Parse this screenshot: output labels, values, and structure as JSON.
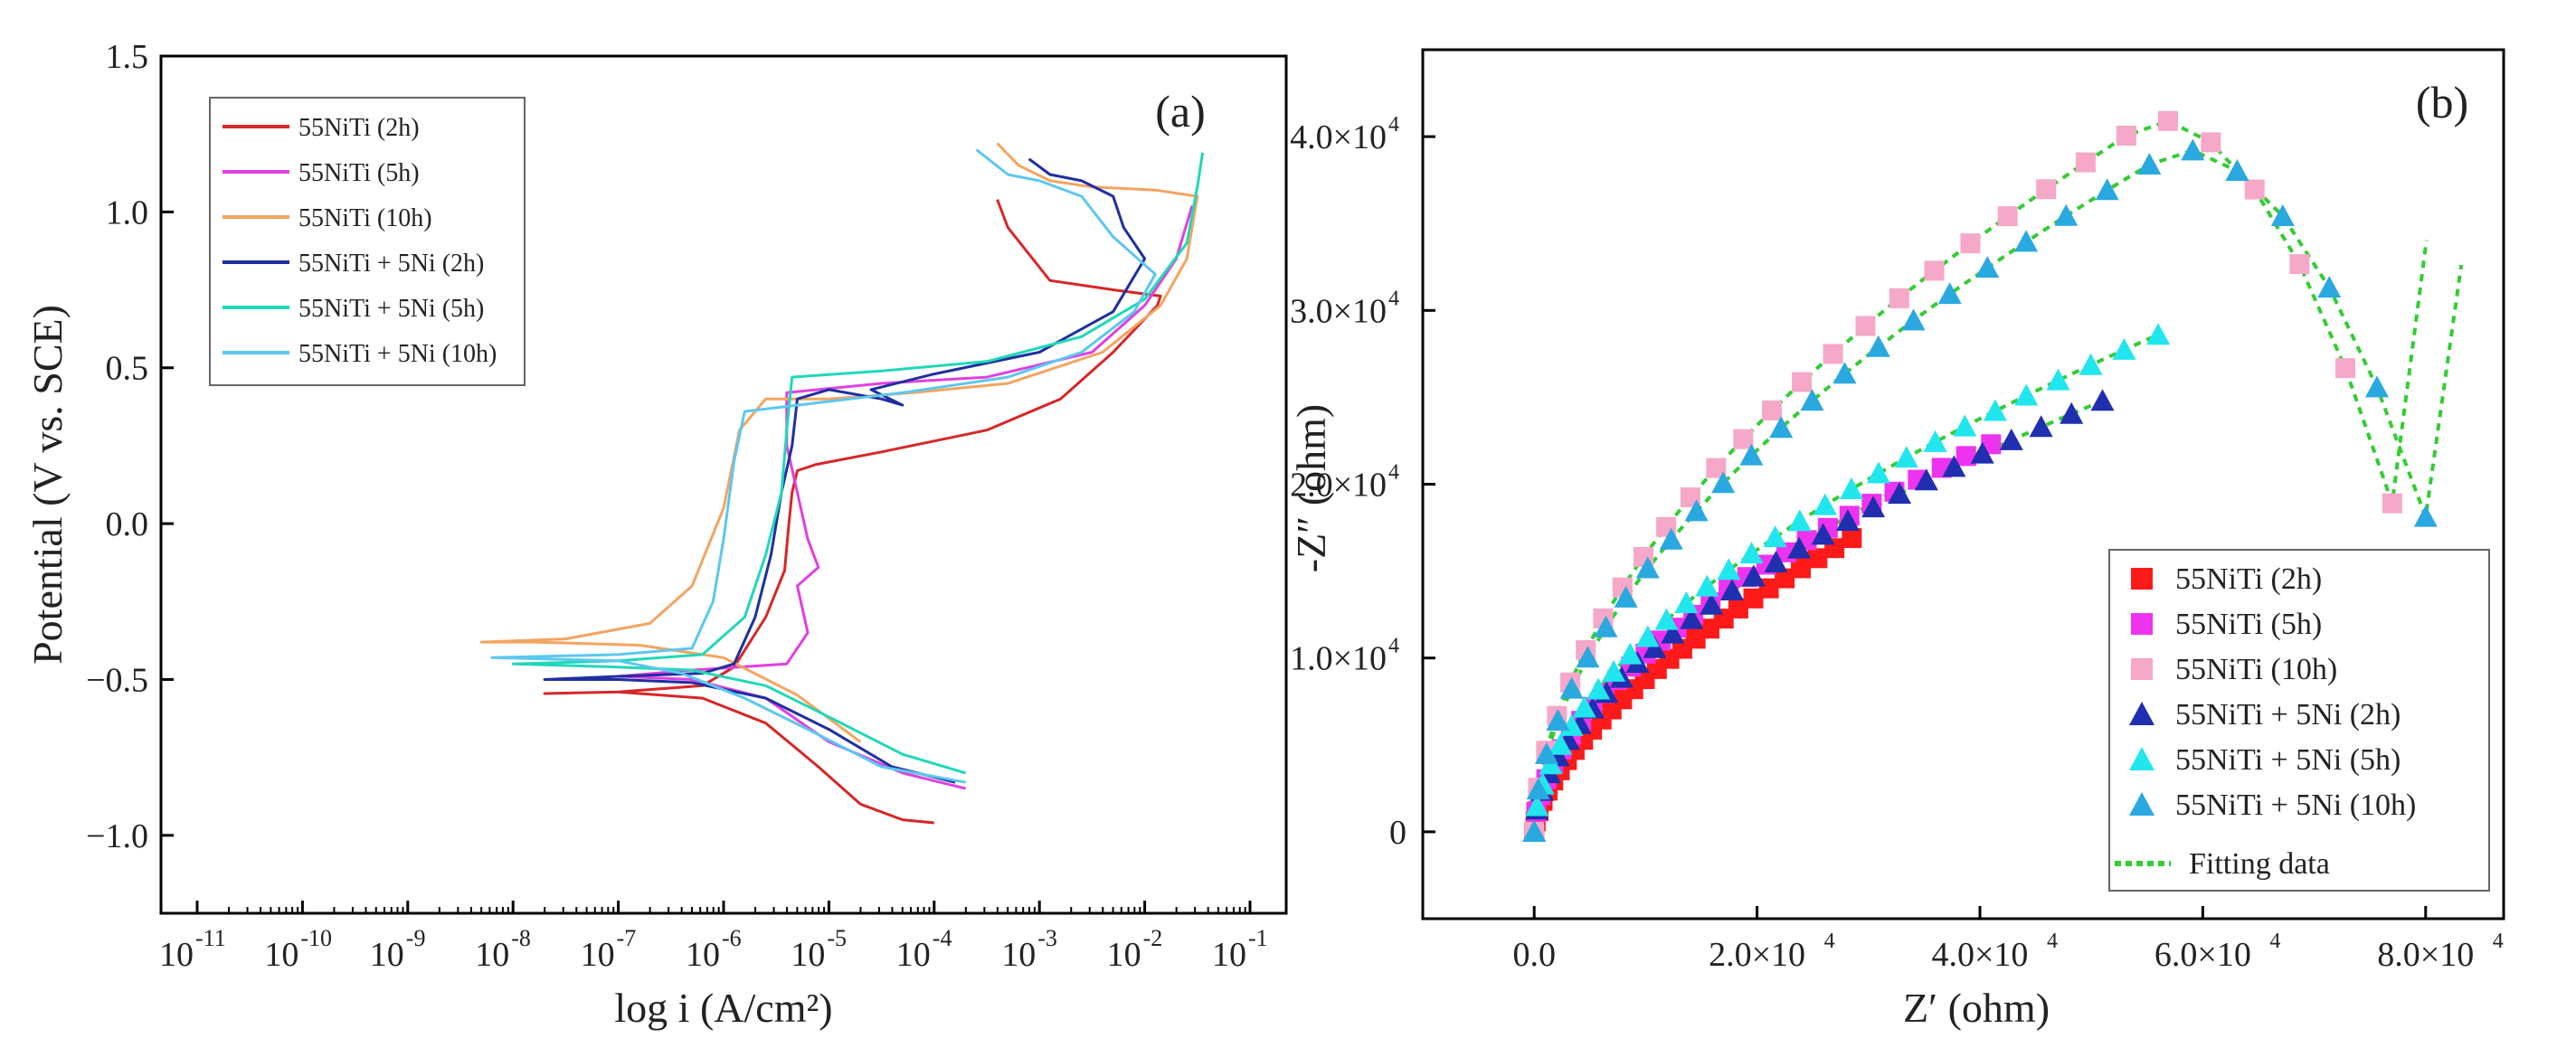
{
  "chart_data": [
    {
      "panel": "(a)",
      "type": "line",
      "xlabel": "log i (A/cm²)",
      "ylabel": "Potential (V vs. SCE)",
      "xscale": "log",
      "xlim": [
        -11,
        -1
      ],
      "ylim": [
        -1.25,
        1.5
      ],
      "xticks": [
        -11,
        -10,
        -9,
        -8,
        -7,
        -6,
        -5,
        -4,
        -3,
        -2,
        -1
      ],
      "xtick_labels": [
        "10",
        "10",
        "10",
        "10",
        "10",
        "10",
        "10",
        "10",
        "10",
        "10",
        "10"
      ],
      "xtick_exponents": [
        "-11",
        "-10",
        "-9",
        "-8",
        "-7",
        "-6",
        "-5",
        "-4",
        "-3",
        "-2",
        "-1"
      ],
      "yticks": [
        -1.0,
        -0.5,
        0.0,
        0.5,
        1.0,
        1.5
      ],
      "ytick_labels": [
        "−1.0",
        "−0.5",
        "0.0",
        "0.5",
        "1.0",
        "1.5"
      ],
      "legend": "top-left",
      "series": [
        {
          "name": "55NiTi (2h)",
          "color": "#d62728",
          "points": [
            [
              -4.0,
              -0.96
            ],
            [
              -4.3,
              -0.95
            ],
            [
              -4.7,
              -0.9
            ],
            [
              -5.1,
              -0.78
            ],
            [
              -5.6,
              -0.64
            ],
            [
              -6.2,
              -0.56
            ],
            [
              -7,
              -0.54
            ],
            [
              -7.7,
              -0.545
            ],
            [
              -7,
              -0.54
            ],
            [
              -6.2,
              -0.52
            ],
            [
              -5.9,
              -0.46
            ],
            [
              -5.6,
              -0.3
            ],
            [
              -5.42,
              -0.15
            ],
            [
              -5.38,
              0.0
            ],
            [
              -5.35,
              0.1
            ],
            [
              -5.3,
              0.17
            ],
            [
              -5.12,
              0.19
            ],
            [
              -4.5,
              0.23
            ],
            [
              -3.5,
              0.3
            ],
            [
              -2.8,
              0.4
            ],
            [
              -2.3,
              0.55
            ],
            [
              -1.88,
              0.7
            ],
            [
              -1.85,
              0.73
            ],
            [
              -2.3,
              0.75
            ],
            [
              -2.9,
              0.78
            ],
            [
              -3.3,
              0.95
            ],
            [
              -3.4,
              1.04
            ]
          ]
        },
        {
          "name": "55NiTi (5h)",
          "color": "#e040e0",
          "points": [
            [
              -3.7,
              -0.85
            ],
            [
              -4.3,
              -0.8
            ],
            [
              -5.0,
              -0.7
            ],
            [
              -5.6,
              -0.56
            ],
            [
              -6.3,
              -0.5
            ],
            [
              -7,
              -0.49
            ],
            [
              -6.3,
              -0.47
            ],
            [
              -5.4,
              -0.45
            ],
            [
              -5.2,
              -0.35
            ],
            [
              -5.3,
              -0.2
            ],
            [
              -5.1,
              -0.14
            ],
            [
              -5.2,
              -0.05
            ],
            [
              -5.3,
              0.1
            ],
            [
              -5.4,
              0.25
            ],
            [
              -5.4,
              0.42
            ],
            [
              -4.5,
              0.45
            ],
            [
              -3.5,
              0.47
            ],
            [
              -2.5,
              0.55
            ],
            [
              -2.0,
              0.7
            ],
            [
              -1.7,
              0.85
            ],
            [
              -1.55,
              1.02
            ]
          ]
        },
        {
          "name": "55NiTi (10h)",
          "color": "#f4a460",
          "points": [
            [
              -4.7,
              -0.7
            ],
            [
              -5.3,
              -0.55
            ],
            [
              -6,
              -0.43
            ],
            [
              -6.8,
              -0.39
            ],
            [
              -7.8,
              -0.38
            ],
            [
              -8.3,
              -0.38
            ],
            [
              -7.5,
              -0.37
            ],
            [
              -6.7,
              -0.32
            ],
            [
              -6.3,
              -0.2
            ],
            [
              -6.0,
              0.05
            ],
            [
              -5.85,
              0.3
            ],
            [
              -5.6,
              0.4
            ],
            [
              -5.0,
              0.4
            ],
            [
              -4.2,
              0.42
            ],
            [
              -3.3,
              0.45
            ],
            [
              -2.4,
              0.55
            ],
            [
              -1.85,
              0.7
            ],
            [
              -1.6,
              0.85
            ],
            [
              -1.5,
              1.05
            ],
            [
              -1.9,
              1.07
            ],
            [
              -2.5,
              1.08
            ],
            [
              -2.9,
              1.1
            ],
            [
              -3.2,
              1.15
            ],
            [
              -3.4,
              1.22
            ]
          ]
        },
        {
          "name": "55NiTi + 5Ni (2h)",
          "color": "#1f2fa0",
          "points": [
            [
              -3.8,
              -0.83
            ],
            [
              -4.4,
              -0.78
            ],
            [
              -5.0,
              -0.66
            ],
            [
              -5.6,
              -0.56
            ],
            [
              -6.3,
              -0.51
            ],
            [
              -7,
              -0.5
            ],
            [
              -7.7,
              -0.5
            ],
            [
              -7,
              -0.49
            ],
            [
              -6.2,
              -0.48
            ],
            [
              -5.9,
              -0.45
            ],
            [
              -5.7,
              -0.3
            ],
            [
              -5.55,
              -0.1
            ],
            [
              -5.45,
              0.1
            ],
            [
              -5.35,
              0.25
            ],
            [
              -5.3,
              0.4
            ],
            [
              -5.0,
              0.43
            ],
            [
              -4.5,
              0.4
            ],
            [
              -4.3,
              0.38
            ],
            [
              -4.6,
              0.43
            ],
            [
              -4.0,
              0.48
            ],
            [
              -3.0,
              0.55
            ],
            [
              -2.3,
              0.68
            ],
            [
              -2.0,
              0.85
            ],
            [
              -2.2,
              0.95
            ],
            [
              -2.3,
              1.05
            ],
            [
              -2.6,
              1.1
            ],
            [
              -2.9,
              1.12
            ],
            [
              -3.1,
              1.17
            ]
          ]
        },
        {
          "name": "55NiTi + 5Ni (5h)",
          "color": "#20d8b8",
          "points": [
            [
              -3.7,
              -0.8
            ],
            [
              -4.3,
              -0.74
            ],
            [
              -5.0,
              -0.62
            ],
            [
              -5.6,
              -0.52
            ],
            [
              -6.3,
              -0.47
            ],
            [
              -7,
              -0.46
            ],
            [
              -8.0,
              -0.45
            ],
            [
              -7,
              -0.44
            ],
            [
              -6.2,
              -0.42
            ],
            [
              -5.8,
              -0.3
            ],
            [
              -5.6,
              -0.1
            ],
            [
              -5.45,
              0.1
            ],
            [
              -5.4,
              0.3
            ],
            [
              -5.35,
              0.47
            ],
            [
              -4.5,
              0.49
            ],
            [
              -3.5,
              0.52
            ],
            [
              -2.6,
              0.6
            ],
            [
              -2.0,
              0.72
            ],
            [
              -1.6,
              0.9
            ],
            [
              -1.5,
              1.08
            ],
            [
              -1.45,
              1.19
            ]
          ]
        },
        {
          "name": "55NiTi + 5Ni (10h)",
          "color": "#5bc8f0",
          "points": [
            [
              -3.7,
              -0.83
            ],
            [
              -4.5,
              -0.78
            ],
            [
              -5.2,
              -0.66
            ],
            [
              -5.8,
              -0.56
            ],
            [
              -6.4,
              -0.48
            ],
            [
              -7,
              -0.44
            ],
            [
              -8.2,
              -0.43
            ],
            [
              -7,
              -0.42
            ],
            [
              -6.3,
              -0.4
            ],
            [
              -6.1,
              -0.25
            ],
            [
              -6.0,
              -0.05
            ],
            [
              -5.9,
              0.2
            ],
            [
              -5.8,
              0.36
            ],
            [
              -5.3,
              0.38
            ],
            [
              -4.3,
              0.42
            ],
            [
              -3.3,
              0.47
            ],
            [
              -2.6,
              0.55
            ],
            [
              -2.1,
              0.68
            ],
            [
              -1.9,
              0.8
            ],
            [
              -2.3,
              0.92
            ],
            [
              -2.6,
              1.05
            ],
            [
              -3.0,
              1.1
            ],
            [
              -3.3,
              1.12
            ],
            [
              -3.6,
              1.2
            ]
          ]
        }
      ]
    },
    {
      "panel": "(b)",
      "type": "scatter",
      "xlabel": "Z′ (ohm)",
      "ylabel": "-Z″ (ohm)",
      "xlim": [
        -10000,
        87000
      ],
      "ylim": [
        -5000,
        45000
      ],
      "xticks": [
        0,
        20000,
        40000,
        60000,
        80000
      ],
      "xtick_labels": [
        "0.0",
        "2.0×10",
        "4.0×10",
        "6.0×10",
        "8.0×10"
      ],
      "yticks": [
        0,
        10000,
        20000,
        30000,
        40000
      ],
      "ytick_labels": [
        "0",
        "1.0×10",
        "2.0×10",
        "3.0×10",
        "4.0×10"
      ],
      "tick_exponent": "4",
      "legend": "bottom-right",
      "series": [
        {
          "name": "55NiTi (2h)",
          "marker": "square",
          "color": "#ff1a1a",
          "xmax": 28500,
          "ymax": 16900,
          "shape": "low",
          "count": 30
        },
        {
          "name": "55NiTi (5h)",
          "marker": "square",
          "color": "#ee33ee",
          "xmax": 41000,
          "ymax": 22300,
          "shape": "mid",
          "count": 30
        },
        {
          "name": "55NiTi (10h)",
          "marker": "square",
          "color": "#f5a8c8",
          "xmax": 77000,
          "ymax": 41000,
          "shape": "arc",
          "count": 30
        },
        {
          "name": "55NiTi + 5Ni (2h)",
          "marker": "triangle",
          "color": "#1f2fb0",
          "xmax": 51000,
          "ymax": 24800,
          "shape": "mid",
          "count": 30
        },
        {
          "name": "55NiTi + 5Ni (5h)",
          "marker": "triangle",
          "color": "#22e6ee",
          "xmax": 56000,
          "ymax": 28600,
          "shape": "mid",
          "count": 30
        },
        {
          "name": "55NiTi + 5Ni (10h)",
          "marker": "triangle",
          "color": "#2aa8e0",
          "xmax": 80000,
          "ymax": 39300,
          "shape": "arc",
          "count": 30
        }
      ],
      "fit_label": "Fitting data",
      "fit_color": "#33cc33"
    }
  ]
}
